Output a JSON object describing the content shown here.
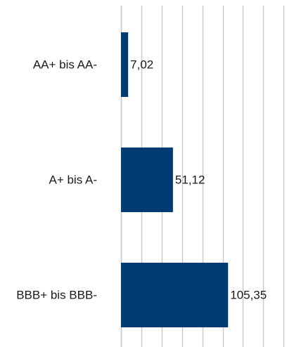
{
  "chart_data": {
    "type": "bar",
    "orientation": "horizontal",
    "title": "",
    "xlabel": "",
    "ylabel": "",
    "categories": [
      "AA+ bis AA-",
      "A+ bis A-",
      "BBB+ bis BBB-"
    ],
    "values": [
      7.02,
      51.12,
      105.35
    ],
    "value_labels": [
      "7,02",
      "51,12",
      "105,35"
    ],
    "xlim": [
      0,
      160
    ],
    "grid": true,
    "grid_step": 20,
    "legend": "none",
    "bar_color": "#003c71",
    "grid_color": "#c8c8c8"
  }
}
